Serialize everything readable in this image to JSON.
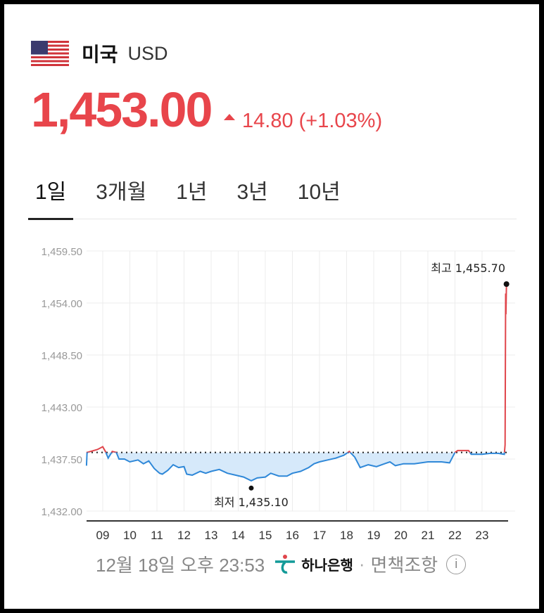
{
  "header": {
    "country": "미국",
    "currency": "USD",
    "flag_icon": "us-flag-icon"
  },
  "quote": {
    "price": "1,453.00",
    "change": "14.80",
    "change_pct": "(+1.03%)",
    "direction": "up",
    "color": "#e8454b"
  },
  "tabs": [
    {
      "label": "1일",
      "active": true
    },
    {
      "label": "3개월"
    },
    {
      "label": "1년"
    },
    {
      "label": "3년"
    },
    {
      "label": "10년"
    }
  ],
  "chart_data": {
    "type": "line",
    "ylim": [
      1432.0,
      1459.5
    ],
    "xlim": [
      8.4,
      24.0
    ],
    "y_ticks": [
      "1,459.50",
      "1,454.00",
      "1,448.50",
      "1,443.00",
      "1,437.50",
      "1,432.00"
    ],
    "y_tick_values": [
      1459.5,
      1454.0,
      1448.5,
      1443.0,
      1437.5,
      1432.0
    ],
    "x_ticks": [
      "09",
      "10",
      "11",
      "12",
      "13",
      "14",
      "15",
      "16",
      "17",
      "18",
      "19",
      "20",
      "21",
      "22",
      "23"
    ],
    "x_tick_values": [
      9,
      10,
      11,
      12,
      13,
      14,
      15,
      16,
      17,
      18,
      19,
      20,
      21,
      22,
      23
    ],
    "baseline": 1438.2,
    "grid": true,
    "colors": {
      "up": "#e0454b",
      "down": "#2f88d8",
      "fill": "#d6e9fa"
    },
    "high": {
      "label": "최고 1,455.70",
      "x": 23.9,
      "y": 1455.7
    },
    "low": {
      "label": "최저 1,435.10",
      "x": 14.48,
      "y": 1435.1
    },
    "points": [
      [
        8.4,
        1436.8
      ],
      [
        8.42,
        1438.2
      ],
      [
        8.8,
        1438.5
      ],
      [
        9.0,
        1438.8
      ],
      [
        9.1,
        1438.3
      ],
      [
        9.2,
        1437.6
      ],
      [
        9.35,
        1438.3
      ],
      [
        9.5,
        1438.2
      ],
      [
        9.6,
        1437.5
      ],
      [
        9.8,
        1437.5
      ],
      [
        10.0,
        1437.2
      ],
      [
        10.3,
        1437.4
      ],
      [
        10.5,
        1437.0
      ],
      [
        10.7,
        1437.3
      ],
      [
        10.9,
        1436.5
      ],
      [
        11.1,
        1436.0
      ],
      [
        11.2,
        1435.9
      ],
      [
        11.4,
        1436.3
      ],
      [
        11.6,
        1436.9
      ],
      [
        11.8,
        1436.6
      ],
      [
        12.0,
        1436.7
      ],
      [
        12.1,
        1435.9
      ],
      [
        12.3,
        1435.8
      ],
      [
        12.6,
        1436.2
      ],
      [
        12.8,
        1436.0
      ],
      [
        13.0,
        1436.2
      ],
      [
        13.3,
        1436.4
      ],
      [
        13.6,
        1436.0
      ],
      [
        13.9,
        1435.8
      ],
      [
        14.2,
        1435.6
      ],
      [
        14.48,
        1435.2
      ],
      [
        14.7,
        1435.5
      ],
      [
        15.0,
        1435.6
      ],
      [
        15.2,
        1436.0
      ],
      [
        15.5,
        1435.7
      ],
      [
        15.8,
        1435.7
      ],
      [
        16.0,
        1436.0
      ],
      [
        16.3,
        1436.2
      ],
      [
        16.6,
        1436.6
      ],
      [
        16.8,
        1437.0
      ],
      [
        17.0,
        1437.2
      ],
      [
        17.3,
        1437.4
      ],
      [
        17.6,
        1437.6
      ],
      [
        17.9,
        1437.9
      ],
      [
        18.1,
        1438.3
      ],
      [
        18.3,
        1437.7
      ],
      [
        18.5,
        1436.6
      ],
      [
        18.8,
        1436.9
      ],
      [
        19.1,
        1436.7
      ],
      [
        19.4,
        1437.0
      ],
      [
        19.6,
        1437.2
      ],
      [
        19.8,
        1436.8
      ],
      [
        20.1,
        1437.0
      ],
      [
        20.5,
        1437.0
      ],
      [
        21.0,
        1437.2
      ],
      [
        21.5,
        1437.2
      ],
      [
        21.8,
        1437.1
      ],
      [
        22.0,
        1438.2
      ],
      [
        22.1,
        1438.4
      ],
      [
        22.5,
        1438.4
      ],
      [
        22.6,
        1438.0
      ],
      [
        23.0,
        1438.0
      ],
      [
        23.3,
        1438.1
      ],
      [
        23.6,
        1438.1
      ],
      [
        23.82,
        1438.0
      ],
      [
        23.85,
        1439.0
      ],
      [
        23.87,
        1455.0
      ],
      [
        23.88,
        1452.8
      ],
      [
        23.9,
        1455.7
      ]
    ]
  },
  "footer": {
    "timestamp": "12월 18일 오후 23:53",
    "bank": "하나은행",
    "disclaimer": "면책조항",
    "info_icon": "i"
  }
}
